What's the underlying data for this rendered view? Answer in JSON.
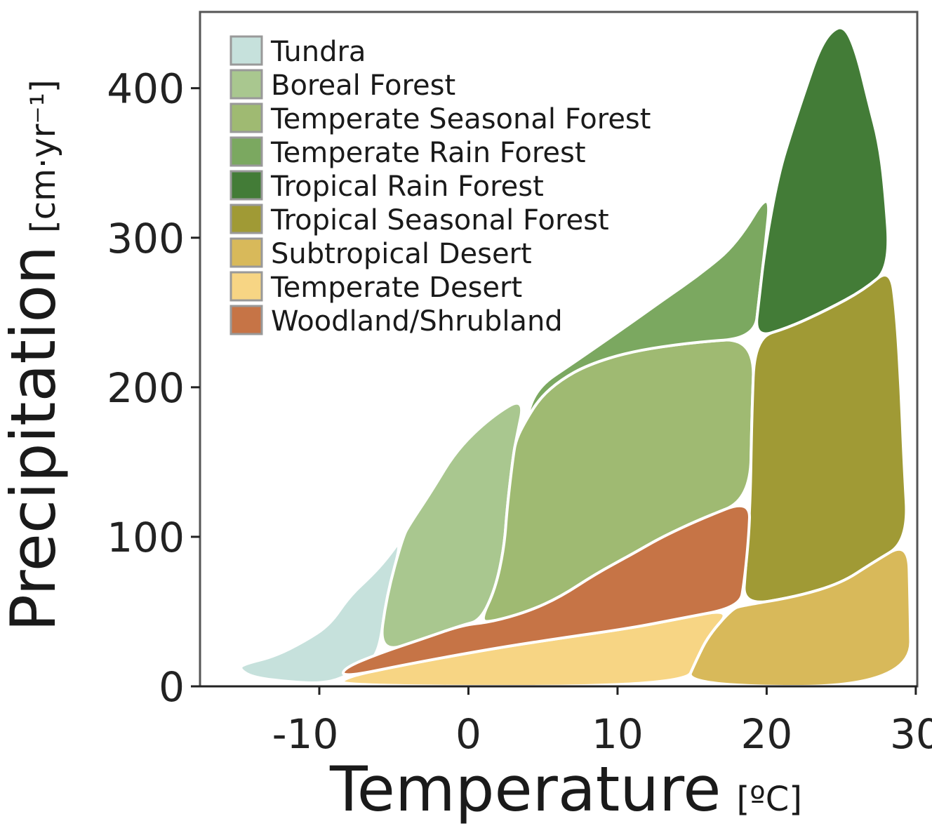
{
  "chart_data": {
    "type": "area",
    "xlabel": "Temperature",
    "xlabel_unit": "[ºC]",
    "ylabel": "Precipitation",
    "ylabel_unit": "[cm·yr⁻¹]",
    "xlim": [
      -18,
      30.1
    ],
    "ylim": [
      0,
      451
    ],
    "xticks": [
      -10,
      0,
      10,
      20,
      30
    ],
    "xtick_labels": [
      "-10",
      "0",
      "10",
      "20",
      "30"
    ],
    "yticks": [
      0,
      100,
      200,
      300,
      400
    ],
    "ytick_labels": [
      "0",
      "100",
      "200",
      "300",
      "400"
    ],
    "grid": false,
    "legend_placement": "top-left",
    "regions": [
      {
        "name": "Tundra",
        "color": "#c6e1dc",
        "points": [
          [
            -15.4,
            12
          ],
          [
            -14.5,
            6
          ],
          [
            -12,
            3
          ],
          [
            -10,
            2
          ],
          [
            -8.5,
            5
          ],
          [
            -7,
            15
          ],
          [
            -6,
            22
          ],
          [
            -5.5,
            60
          ],
          [
            -4.4,
            100
          ],
          [
            -5.5,
            85
          ],
          [
            -6.5,
            74
          ],
          [
            -8,
            60
          ],
          [
            -9.3,
            41
          ],
          [
            -11,
            30
          ],
          [
            -13,
            20
          ],
          [
            -15,
            15
          ]
        ]
      },
      {
        "name": "Boreal Forest",
        "color": "#a9c78f",
        "points": [
          [
            -6,
            22
          ],
          [
            -5.5,
            60
          ],
          [
            -4.4,
            100
          ],
          [
            -3.9,
            109
          ],
          [
            -2.5,
            130
          ],
          [
            -0.8,
            158
          ],
          [
            1.5,
            180
          ],
          [
            3.8,
            194
          ],
          [
            3.2,
            165
          ],
          [
            3.0,
            154
          ],
          [
            2.6,
            120
          ],
          [
            2.4,
            93
          ],
          [
            1.8,
            65
          ],
          [
            0.8,
            44
          ],
          [
            -0.4,
            41
          ],
          [
            -3,
            32
          ]
        ]
      },
      {
        "name": "Temperate Seasonal Forest",
        "color": "#9fba72",
        "points": [
          [
            3.8,
            177
          ],
          [
            4.8,
            193
          ],
          [
            6.2,
            205
          ],
          [
            8,
            215
          ],
          [
            10.9,
            224
          ],
          [
            15,
            230
          ],
          [
            19.2,
            233
          ],
          [
            19.0,
            180
          ],
          [
            18.9,
            125
          ],
          [
            15.6,
            112
          ],
          [
            13,
            100
          ],
          [
            10.9,
            88
          ],
          [
            8.5,
            75
          ],
          [
            6.2,
            60
          ],
          [
            4,
            50
          ],
          [
            1.5,
            43
          ],
          [
            0.8,
            44
          ],
          [
            1.8,
            65
          ],
          [
            2.4,
            93
          ],
          [
            2.6,
            120
          ],
          [
            3.0,
            154
          ],
          [
            3.2,
            165
          ]
        ]
      },
      {
        "name": "Temperate Rain Forest",
        "color": "#7ba860",
        "points": [
          [
            3.8,
            177
          ],
          [
            4.6,
            200
          ],
          [
            7,
            216
          ],
          [
            10.9,
            243
          ],
          [
            13,
            258
          ],
          [
            15.6,
            276
          ],
          [
            18,
            296
          ],
          [
            20.3,
            334
          ],
          [
            19.9,
            294
          ],
          [
            19.5,
            260
          ],
          [
            19.2,
            233
          ],
          [
            15,
            230
          ],
          [
            10.9,
            224
          ],
          [
            8,
            215
          ],
          [
            6.2,
            205
          ],
          [
            4.8,
            193
          ]
        ]
      },
      {
        "name": "Tropical Rain Forest",
        "color": "#437c37",
        "points": [
          [
            19.2,
            233
          ],
          [
            21.5,
            240
          ],
          [
            24.1,
            252
          ],
          [
            26.5,
            265
          ],
          [
            28.3,
            280
          ],
          [
            27.9,
            336
          ],
          [
            27.5,
            365
          ],
          [
            26.9,
            388
          ],
          [
            26,
            425
          ],
          [
            25.2,
            442
          ],
          [
            24.3,
            438
          ],
          [
            23.5,
            425
          ],
          [
            22.7,
            402
          ],
          [
            21.8,
            375
          ],
          [
            20.8,
            343
          ],
          [
            19.9,
            294
          ],
          [
            19.5,
            260
          ]
        ]
      },
      {
        "name": "Tropical Seasonal Forest",
        "color": "#a09a35",
        "points": [
          [
            18.4,
            54
          ],
          [
            22,
            60
          ],
          [
            25,
            69
          ],
          [
            27,
            82
          ],
          [
            29.5,
            97
          ],
          [
            29.2,
            150
          ],
          [
            29,
            200
          ],
          [
            28.7,
            250
          ],
          [
            28.3,
            280
          ],
          [
            26.5,
            265
          ],
          [
            24.1,
            252
          ],
          [
            21.5,
            240
          ],
          [
            19.2,
            233
          ],
          [
            19.0,
            180
          ],
          [
            18.9,
            121
          ],
          [
            18.6,
            80
          ]
        ]
      },
      {
        "name": "Subtropical Desert",
        "color": "#d8b95a",
        "points": [
          [
            14.5,
            0
          ],
          [
            29.7,
            0
          ],
          [
            29.6,
            60
          ],
          [
            29.5,
            97
          ],
          [
            27,
            82
          ],
          [
            25,
            69
          ],
          [
            22,
            60
          ],
          [
            18.4,
            54
          ],
          [
            17.7,
            52
          ],
          [
            16.1,
            34
          ],
          [
            15.3,
            18
          ]
        ]
      },
      {
        "name": "Temperate Desert",
        "color": "#f7d584",
        "points": [
          [
            -8.5,
            0
          ],
          [
            14.5,
            0
          ],
          [
            15.3,
            18
          ],
          [
            16.1,
            34
          ],
          [
            17.7,
            52
          ],
          [
            14,
            45
          ],
          [
            10.9,
            39
          ],
          [
            6,
            32
          ],
          [
            1.5,
            25
          ],
          [
            -4,
            15
          ],
          [
            -8.4,
            6
          ]
        ]
      },
      {
        "name": "Woodland/Shrubland",
        "color": "#c67446",
        "points": [
          [
            -8.4,
            12
          ],
          [
            -6,
            22
          ],
          [
            -3,
            32
          ],
          [
            -0.4,
            41
          ],
          [
            1.5,
            43
          ],
          [
            4,
            50
          ],
          [
            6.2,
            60
          ],
          [
            8.5,
            75
          ],
          [
            10.9,
            88
          ],
          [
            13,
            100
          ],
          [
            15.6,
            112
          ],
          [
            18.9,
            125
          ],
          [
            18.8,
            100
          ],
          [
            18.5,
            70
          ],
          [
            18.2,
            53
          ],
          [
            14,
            45
          ],
          [
            10.9,
            39
          ],
          [
            6,
            32
          ],
          [
            1.5,
            25
          ],
          [
            -4,
            15
          ],
          [
            -8.4,
            6
          ]
        ]
      }
    ],
    "legend": [
      "Tundra",
      "Boreal Forest",
      "Temperate Seasonal Forest",
      "Temperate Rain Forest",
      "Tropical Rain Forest",
      "Tropical Seasonal Forest",
      "Subtropical Desert",
      "Temperate Desert",
      "Woodland/Shrubland"
    ]
  }
}
